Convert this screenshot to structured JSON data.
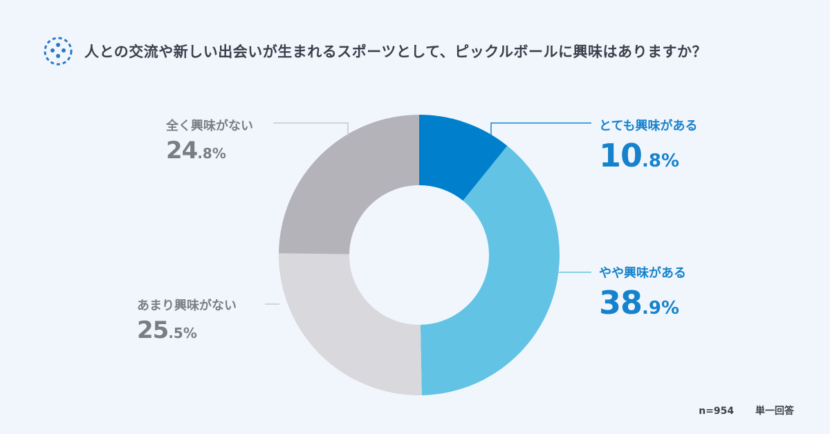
{
  "title": "人との交流や新しい出会いが生まれるスポーツとして、ピックルボールに興味はありますか？",
  "icon": "pickleball-icon",
  "footer": {
    "sample": "n=954",
    "answer_type": "単一回答"
  },
  "colors": {
    "accent": "#1782cc",
    "gray_text": "#7b7d86",
    "background": "#f1f6fd"
  },
  "chart_data": {
    "type": "pie",
    "variant": "donut",
    "categories": [
      "とても興味がある",
      "やや興味がある",
      "あまり興味がない",
      "全く興味がない"
    ],
    "values": [
      10.8,
      38.9,
      25.5,
      24.8
    ],
    "labels": [
      {
        "name": "とても興味がある",
        "int": "10",
        "dec": ".8%"
      },
      {
        "name": "やや興味がある",
        "int": "38",
        "dec": ".9%"
      },
      {
        "name": "あまり興味がない",
        "int": "25",
        "dec": ".5%"
      },
      {
        "name": "全く興味がない",
        "int": "24",
        "dec": ".8%"
      }
    ],
    "colors": [
      "#0080cc",
      "#62c3e5",
      "#d9d8dd",
      "#b4b3b9"
    ],
    "legend": "none"
  }
}
